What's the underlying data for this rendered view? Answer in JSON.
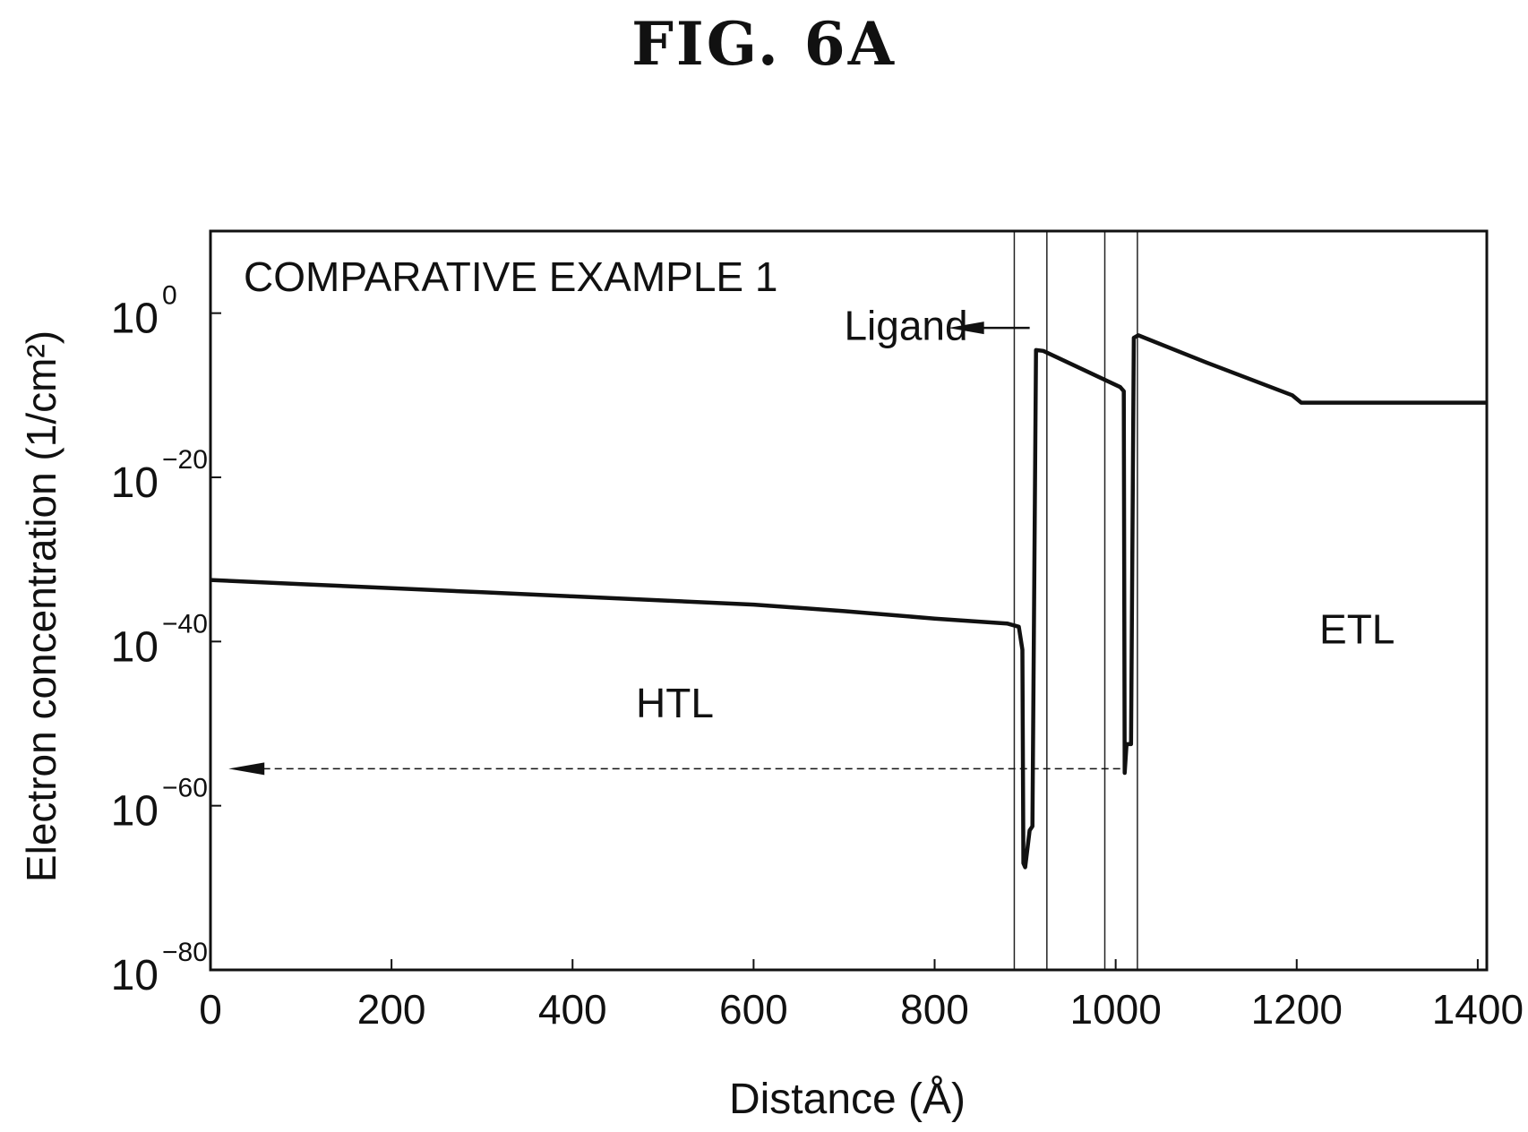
{
  "figure_label": "FIG.  6A",
  "chart_data": {
    "type": "line",
    "title": "COMPARATIVE EXAMPLE 1",
    "xlabel": "Distance (Å)",
    "ylabel": "Electron concentration (1/cm²)",
    "xlim": [
      0,
      1410
    ],
    "ylim_exponent": [
      -80,
      10
    ],
    "y_scale": "log",
    "x_ticks": [
      0,
      200,
      400,
      600,
      800,
      1000,
      1200,
      1400
    ],
    "x_tick_labels": [
      "0",
      "200",
      "400",
      "600",
      "800",
      "1000",
      "1200",
      "1400"
    ],
    "y_ticks": [
      {
        "exp": 0,
        "base": "10",
        "sup": "0"
      },
      {
        "exp": -20,
        "base": "10",
        "sup": "−20"
      },
      {
        "exp": -40,
        "base": "10",
        "sup": "−40"
      },
      {
        "exp": -60,
        "base": "10",
        "sup": "−60"
      },
      {
        "exp": -80,
        "base": "10",
        "sup": "−80"
      }
    ],
    "grid": false,
    "layer_boundaries": [
      888,
      924,
      988,
      1024
    ],
    "series": [
      {
        "x": [
          0,
          100,
          200,
          300,
          400,
          500,
          600,
          700,
          800,
          880,
          893,
          897,
          898,
          900,
          905,
          908,
          912,
          920,
          1005,
          1009,
          1010,
          1012,
          1017,
          1020,
          1025,
          1100,
          1195,
          1205,
          1410
        ],
        "y_exponent": [
          -32.5,
          -33.0,
          -33.5,
          -34.0,
          -34.5,
          -35.0,
          -35.5,
          -36.3,
          -37.2,
          -37.8,
          -38.2,
          -41.0,
          -67.0,
          -67.5,
          -63.0,
          -62.5,
          -4.5,
          -4.6,
          -9.0,
          -9.5,
          -56.0,
          -52.5,
          -52.5,
          -3.0,
          -2.7,
          -6.0,
          -10.0,
          -10.9,
          -10.9
        ]
      }
    ],
    "annotations": [
      {
        "text": "Ligand",
        "x": 700,
        "y_exponent": -1.5
      },
      {
        "text": "HTL",
        "x": 470,
        "y_exponent": -47.5
      },
      {
        "text": "ETL",
        "x": 1225,
        "y_exponent": -38.5
      }
    ],
    "arrows": [
      {
        "from_x": 905,
        "to_x": 815,
        "y_exponent": -1.8,
        "style": "solid"
      },
      {
        "from_x": 1005,
        "to_x": 20,
        "y_exponent": -55.5,
        "style": "dashed"
      }
    ]
  }
}
